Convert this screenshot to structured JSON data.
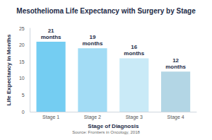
{
  "chart_data": {
    "type": "bar",
    "title": "Mesothelioma Life Expectancy with Surgery by Stage",
    "x_label": "Stage of Diagnosis",
    "y_label": "Life Expectancy in Months",
    "source": "Source: Frontiers in Oncology, 2018",
    "categories": [
      "Stage 1",
      "Stage 2",
      "Stage 3",
      "Stage 4"
    ],
    "values": [
      21,
      19,
      16,
      12
    ],
    "value_labels": [
      "21 months",
      "19 months",
      "16 months",
      "12 months"
    ],
    "colors": [
      "#74cdf2",
      "#a2dcf5",
      "#c9eaf7",
      "#b3d6e5"
    ],
    "ylim": [
      0,
      25
    ],
    "yticks": [
      0,
      5,
      10,
      15,
      20,
      25
    ],
    "grid": false,
    "data_labels": true
  }
}
